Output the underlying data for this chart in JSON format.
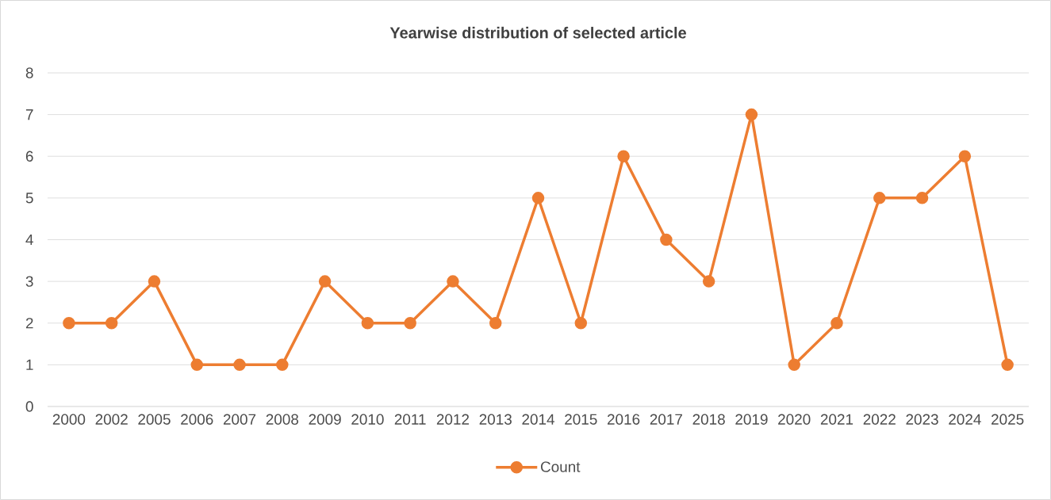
{
  "chart_data": {
    "type": "line",
    "title": "Yearwise distribution of selected article",
    "categories": [
      "2000",
      "2002",
      "2005",
      "2006",
      "2007",
      "2008",
      "2009",
      "2010",
      "2011",
      "2012",
      "2013",
      "2014",
      "2015",
      "2016",
      "2017",
      "2018",
      "2019",
      "2020",
      "2021",
      "2022",
      "2023",
      "2024",
      "2025"
    ],
    "series": [
      {
        "name": "Count",
        "color": "#ed7d31",
        "values": [
          2,
          2,
          3,
          1,
          1,
          1,
          3,
          2,
          2,
          3,
          2,
          5,
          2,
          6,
          4,
          3,
          7,
          1,
          2,
          5,
          5,
          6,
          1
        ]
      }
    ],
    "ylim": [
      0,
      8
    ],
    "yticks": [
      0,
      1,
      2,
      3,
      4,
      5,
      6,
      7,
      8
    ],
    "grid": "y",
    "legend": "bottom",
    "marker": "circle",
    "line_style": "solid"
  }
}
